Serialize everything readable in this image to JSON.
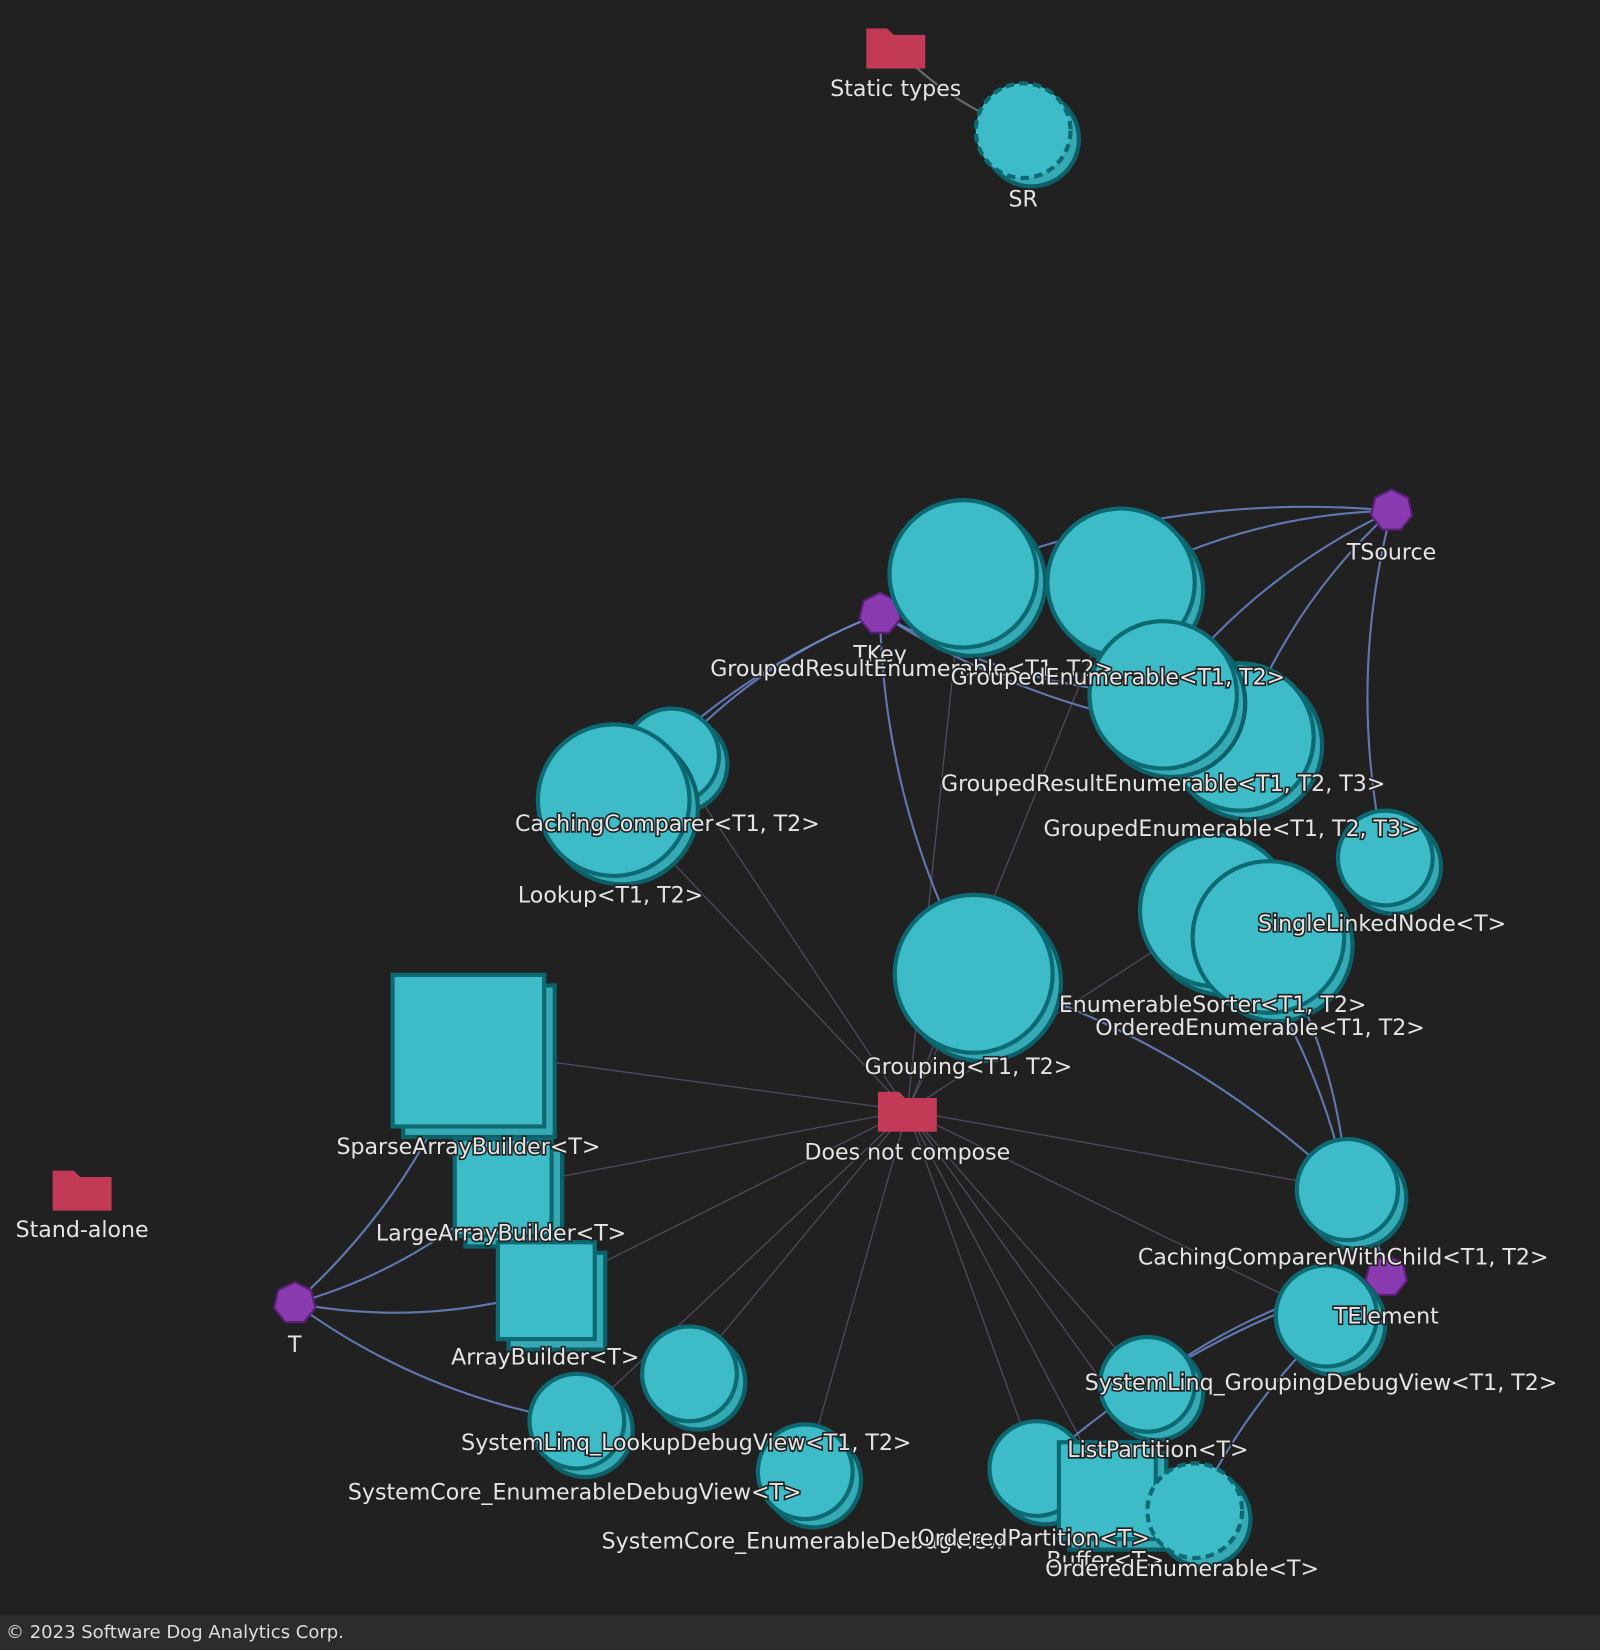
{
  "nodes": [
    {
      "label": "Static types"
    },
    {
      "label": "SR"
    },
    {
      "label": "TSource"
    },
    {
      "label": "TKey"
    },
    {
      "label": "GroupedResultEnumerable<T1, T2>"
    },
    {
      "label": "GroupedEnumerable<T1, T2>"
    },
    {
      "label": "GroupedResultEnumerable<T1, T2, T3>"
    },
    {
      "label": "GroupedEnumerable<T1, T2, T3>"
    },
    {
      "label": "CachingComparer<T1, T2>"
    },
    {
      "label": "Lookup<T1, T2>"
    },
    {
      "label": "SingleLinkedNode<T>"
    },
    {
      "label": "EnumerableSorter<T1, T2>"
    },
    {
      "label": "OrderedEnumerable<T1, T2>"
    },
    {
      "label": "Grouping<T1, T2>"
    },
    {
      "label": "Does not compose"
    },
    {
      "label": "SparseArrayBuilder<T>"
    },
    {
      "label": "LargeArrayBuilder<T>"
    },
    {
      "label": "ArrayBuilder<T>"
    },
    {
      "label": "Stand-alone"
    },
    {
      "label": "T"
    },
    {
      "label": "CachingComparerWithChild<T1, T2>"
    },
    {
      "label": "TElement"
    },
    {
      "label": "SystemLinq_GroupingDebugView<T1, T2>"
    },
    {
      "label": "SystemLinq_LookupDebugView<T1, T2>"
    },
    {
      "label": "SystemCore_EnumerableDebugView<T>"
    },
    {
      "label": "SystemCore_EnumerableDebugView"
    },
    {
      "label": "ListPartition<T>"
    },
    {
      "label": "OrderedPartition<T>"
    },
    {
      "label": "Buffer<T>"
    },
    {
      "label": "OrderedEnumerable<T>"
    }
  ],
  "footer": "© 2023 Software Dog Analytics Corp."
}
